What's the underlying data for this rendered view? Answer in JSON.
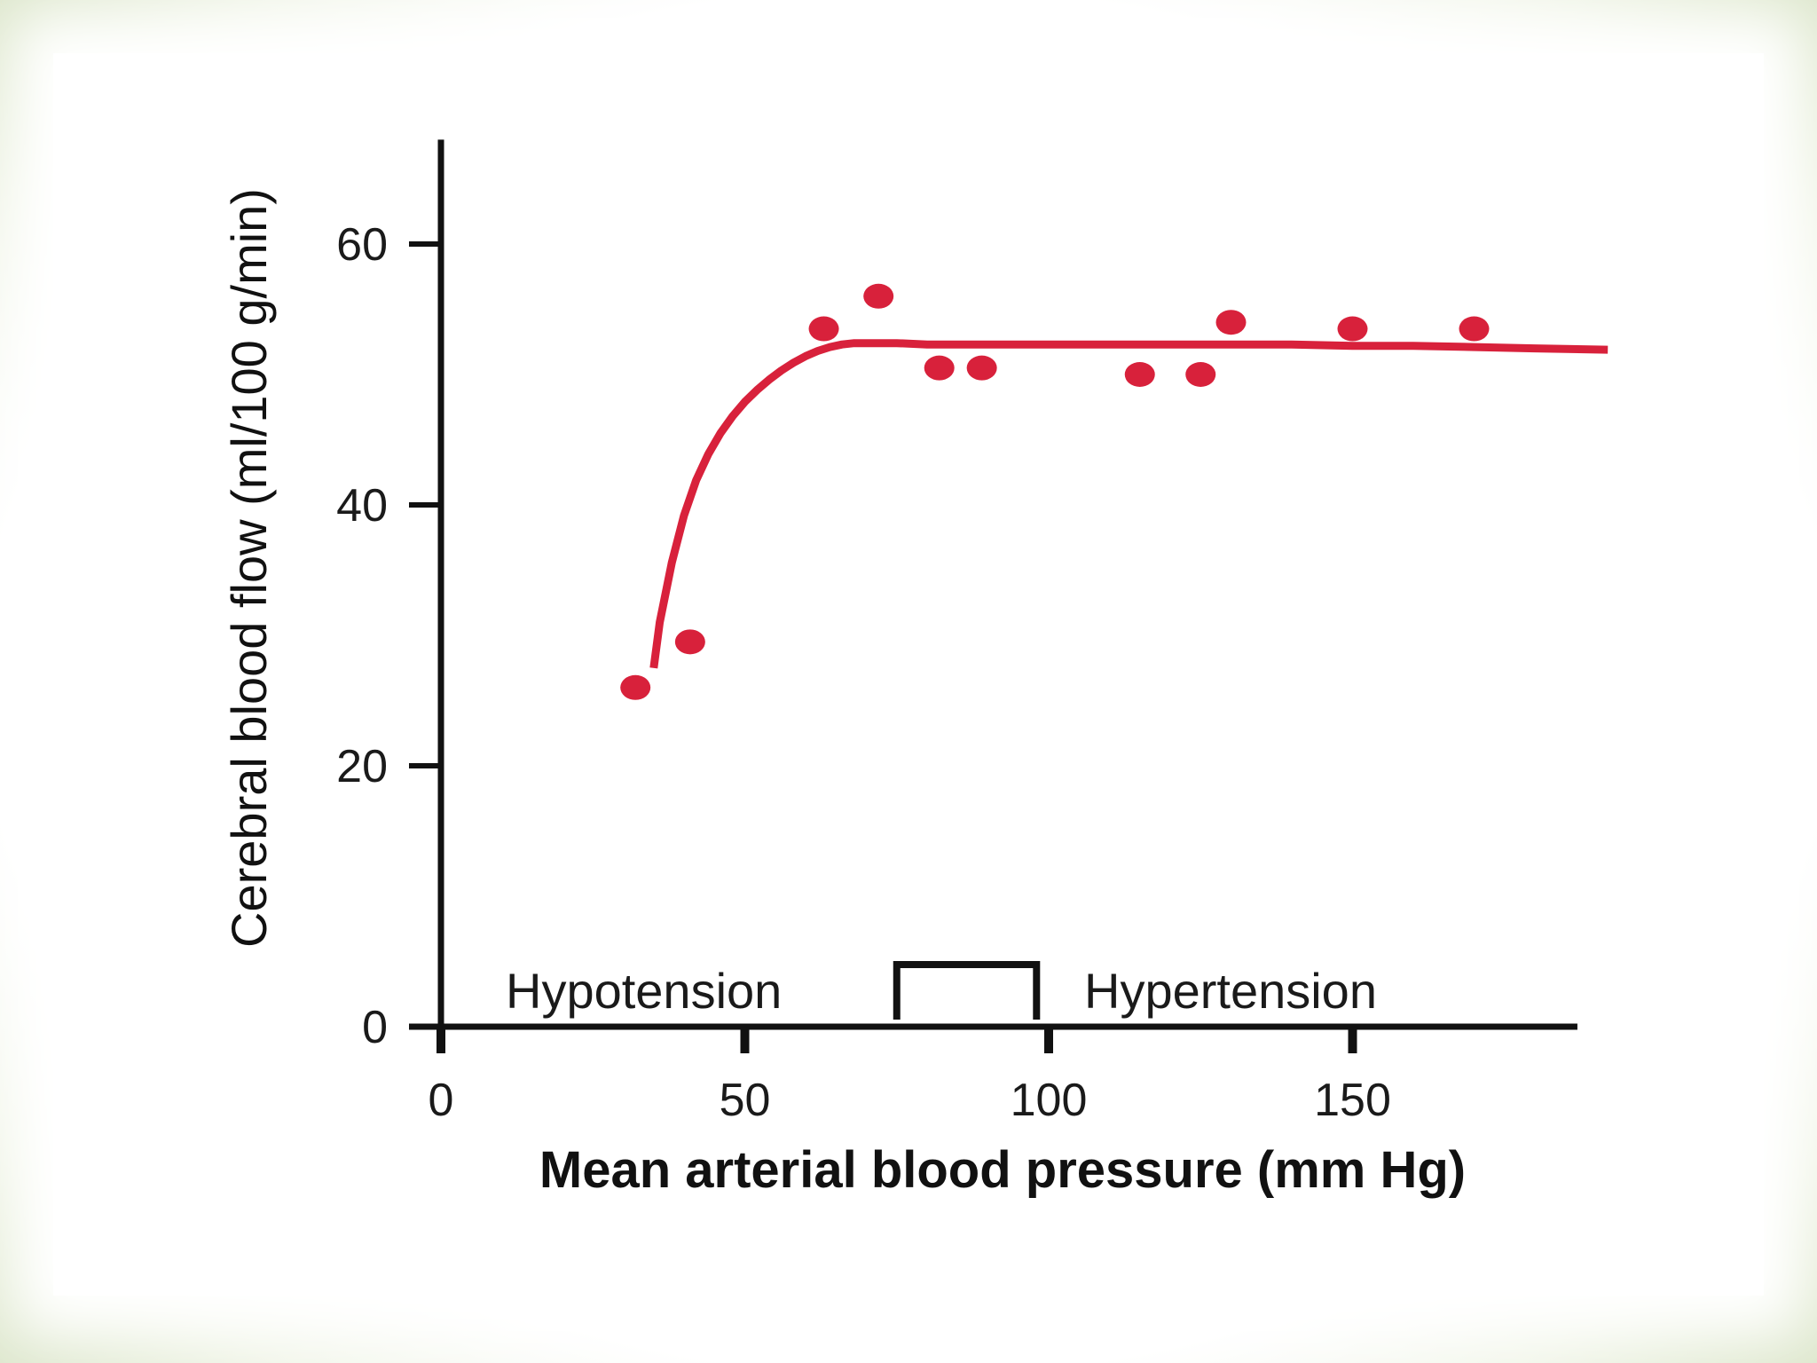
{
  "chart_data": {
    "type": "scatter",
    "title": "",
    "xlabel": "Mean arterial blood pressure (mm Hg)",
    "ylabel": "Cerebral blood flow (ml/100 g/min)",
    "xlim": [
      0,
      187
    ],
    "ylim": [
      0,
      68
    ],
    "x_ticks": [
      0,
      50,
      100,
      150
    ],
    "y_ticks": [
      0,
      20,
      40,
      60
    ],
    "x_tick_labels": [
      "0",
      "50",
      "100",
      "150"
    ],
    "y_tick_labels": [
      "0",
      "20",
      "40",
      "60"
    ],
    "grid": false,
    "color": "#d8213b",
    "series": [
      {
        "kind": "points",
        "x": [
          32,
          41,
          63,
          72,
          82,
          89,
          115,
          125,
          130,
          150,
          170
        ],
        "y": [
          26,
          29.5,
          53.5,
          56,
          50.5,
          50.5,
          50,
          50,
          54,
          53.5,
          53.5
        ]
      },
      {
        "kind": "fitted-line",
        "x": [
          35,
          36,
          38,
          40,
          42,
          44,
          46,
          48,
          50,
          52,
          54,
          56,
          58,
          60,
          62,
          64,
          66,
          68,
          70,
          75,
          80,
          90,
          100,
          110,
          120,
          130,
          140,
          150,
          160,
          170,
          180,
          192
        ],
        "y": [
          27.5,
          31,
          35.6,
          39.2,
          41.9,
          43.9,
          45.5,
          46.8,
          47.9,
          48.8,
          49.6,
          50.3,
          50.9,
          51.4,
          51.8,
          52.1,
          52.3,
          52.4,
          52.4,
          52.4,
          52.3,
          52.3,
          52.3,
          52.3,
          52.3,
          52.3,
          52.3,
          52.2,
          52.2,
          52.1,
          52.0,
          51.9
        ]
      }
    ],
    "annotations": {
      "hypotension_label": "Hypotension",
      "hypertension_label": "Hypertension",
      "autoregulation_bracket": [
        75,
        98
      ]
    }
  }
}
